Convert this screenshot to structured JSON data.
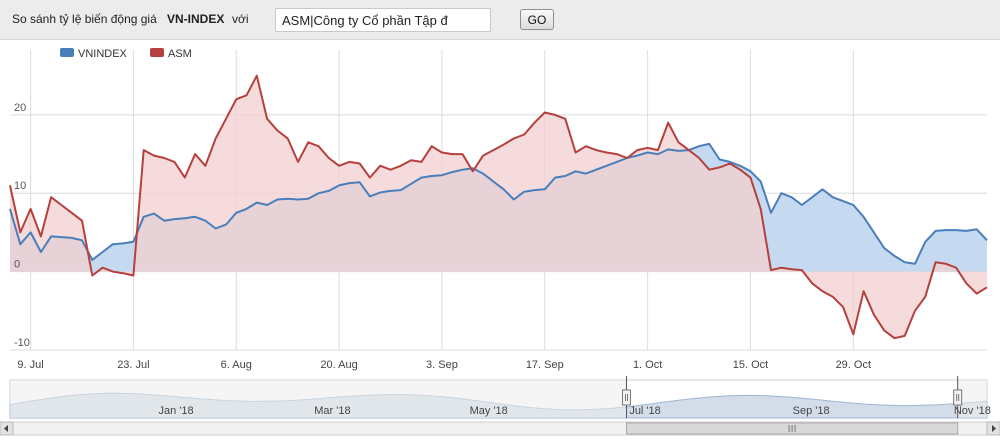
{
  "toolbar": {
    "compare_label": "So sánh tỷ lệ biến động giá",
    "index_name": "VN-INDEX",
    "with_label": "với",
    "symbol_value": "ASM|Công ty Cổ phần Tập đ",
    "go_label": "GO"
  },
  "colors": {
    "vnindex": "#4a7ebb",
    "vnindex_fill": "#c5daf0",
    "asm": "#b5403d",
    "asm_fill": "#f1cfcf",
    "overlap_fill": "#cbbdd4",
    "grid": "#dcdcdc",
    "navigator_fill": "#d3dde9",
    "navigator_mask": "#ececec"
  },
  "chart_data": {
    "type": "area",
    "series": [
      {
        "name": "VNINDEX",
        "values": [
          [
            0,
            8
          ],
          [
            2,
            3.5
          ],
          [
            4,
            5
          ],
          [
            6,
            2.5
          ],
          [
            8,
            4.5
          ],
          [
            10,
            4.4
          ],
          [
            12,
            4.3
          ],
          [
            14,
            4
          ],
          [
            16,
            1.5
          ],
          [
            18,
            2.5
          ],
          [
            20,
            3.5
          ],
          [
            22,
            3.6
          ],
          [
            24,
            3.8
          ],
          [
            26,
            7
          ],
          [
            28,
            7.4
          ],
          [
            30,
            6.5
          ],
          [
            32,
            6.7
          ],
          [
            34,
            6.8
          ],
          [
            36,
            7
          ],
          [
            38,
            6.5
          ],
          [
            40,
            5.5
          ],
          [
            42,
            6
          ],
          [
            44,
            7.5
          ],
          [
            46,
            8
          ],
          [
            48,
            8.8
          ],
          [
            50,
            8.5
          ],
          [
            52,
            9.2
          ],
          [
            54,
            9.3
          ],
          [
            56,
            9.2
          ],
          [
            58,
            9.3
          ],
          [
            60,
            10
          ],
          [
            62,
            10.3
          ],
          [
            64,
            11
          ],
          [
            66,
            11.3
          ],
          [
            68,
            11.4
          ],
          [
            70,
            9.6
          ],
          [
            72,
            10.1
          ],
          [
            74,
            10.3
          ],
          [
            76,
            10.4
          ],
          [
            78,
            11.2
          ],
          [
            80,
            12
          ],
          [
            82,
            12.2
          ],
          [
            84,
            12.3
          ],
          [
            86,
            12.7
          ],
          [
            88,
            13
          ],
          [
            90,
            13.2
          ],
          [
            92,
            12.5
          ],
          [
            94,
            11.5
          ],
          [
            96,
            10.5
          ],
          [
            98,
            9.2
          ],
          [
            100,
            10.2
          ],
          [
            102,
            10.4
          ],
          [
            104,
            10.5
          ],
          [
            106,
            12
          ],
          [
            108,
            12.2
          ],
          [
            110,
            12.8
          ],
          [
            112,
            12.5
          ],
          [
            114,
            13
          ],
          [
            116,
            13.5
          ],
          [
            118,
            14
          ],
          [
            120,
            14.5
          ],
          [
            122,
            14.8
          ],
          [
            124,
            15.2
          ],
          [
            126,
            15
          ],
          [
            128,
            15.6
          ],
          [
            130,
            15.4
          ],
          [
            132,
            15.5
          ],
          [
            134,
            16
          ],
          [
            136,
            16.3
          ],
          [
            138,
            14.3
          ],
          [
            140,
            14
          ],
          [
            142,
            13.5
          ],
          [
            144,
            12.8
          ],
          [
            146,
            11.5
          ],
          [
            148,
            7.5
          ],
          [
            150,
            10
          ],
          [
            152,
            9.5
          ],
          [
            154,
            8.5
          ],
          [
            156,
            9.5
          ],
          [
            158,
            10.5
          ],
          [
            160,
            9.5
          ],
          [
            162,
            9
          ],
          [
            164,
            8.5
          ],
          [
            166,
            7
          ],
          [
            168,
            5
          ],
          [
            170,
            3
          ],
          [
            172,
            2
          ],
          [
            174,
            1.2
          ],
          [
            176,
            1
          ],
          [
            178,
            3.8
          ],
          [
            180,
            5.2
          ],
          [
            182,
            5.3
          ],
          [
            184,
            5.3
          ],
          [
            186,
            5.2
          ],
          [
            188,
            5.4
          ],
          [
            190,
            4
          ]
        ]
      },
      {
        "name": "ASM",
        "values": [
          [
            0,
            11
          ],
          [
            2,
            5
          ],
          [
            4,
            8
          ],
          [
            6,
            4.5
          ],
          [
            8,
            9.5
          ],
          [
            10,
            8.5
          ],
          [
            12,
            7.5
          ],
          [
            14,
            6.5
          ],
          [
            16,
            -0.5
          ],
          [
            18,
            0.5
          ],
          [
            20,
            0
          ],
          [
            22,
            -0.2
          ],
          [
            24,
            -0.5
          ],
          [
            26,
            15.5
          ],
          [
            28,
            14.8
          ],
          [
            30,
            14.5
          ],
          [
            32,
            14
          ],
          [
            34,
            12
          ],
          [
            36,
            15
          ],
          [
            38,
            13.5
          ],
          [
            40,
            17
          ],
          [
            42,
            19.5
          ],
          [
            44,
            22
          ],
          [
            46,
            22.5
          ],
          [
            48,
            25
          ],
          [
            50,
            19.5
          ],
          [
            52,
            18
          ],
          [
            54,
            17
          ],
          [
            56,
            14
          ],
          [
            58,
            16.5
          ],
          [
            60,
            16
          ],
          [
            62,
            14.5
          ],
          [
            64,
            13.5
          ],
          [
            66,
            14
          ],
          [
            68,
            13.8
          ],
          [
            70,
            12
          ],
          [
            72,
            13.5
          ],
          [
            74,
            13
          ],
          [
            76,
            13.5
          ],
          [
            78,
            14.2
          ],
          [
            80,
            14
          ],
          [
            82,
            16
          ],
          [
            84,
            15.2
          ],
          [
            86,
            15
          ],
          [
            88,
            15
          ],
          [
            90,
            12.8
          ],
          [
            92,
            14.8
          ],
          [
            94,
            15.5
          ],
          [
            96,
            16.2
          ],
          [
            98,
            17
          ],
          [
            100,
            17.5
          ],
          [
            102,
            19
          ],
          [
            104,
            20.3
          ],
          [
            106,
            20
          ],
          [
            108,
            19.5
          ],
          [
            110,
            15.2
          ],
          [
            112,
            16
          ],
          [
            114,
            15.5
          ],
          [
            116,
            15.2
          ],
          [
            118,
            15
          ],
          [
            120,
            14.5
          ],
          [
            122,
            15.5
          ],
          [
            124,
            15.8
          ],
          [
            126,
            15.5
          ],
          [
            128,
            19
          ],
          [
            130,
            16.5
          ],
          [
            132,
            15.5
          ],
          [
            134,
            14.5
          ],
          [
            136,
            13
          ],
          [
            138,
            13.3
          ],
          [
            140,
            13.8
          ],
          [
            142,
            13
          ],
          [
            144,
            12
          ],
          [
            146,
            8
          ],
          [
            148,
            0.2
          ],
          [
            150,
            0.5
          ],
          [
            152,
            0.3
          ],
          [
            154,
            0.2
          ],
          [
            156,
            -1.5
          ],
          [
            158,
            -2.5
          ],
          [
            160,
            -3.2
          ],
          [
            162,
            -4.5
          ],
          [
            164,
            -8
          ],
          [
            166,
            -2.5
          ],
          [
            168,
            -5.5
          ],
          [
            170,
            -7.5
          ],
          [
            172,
            -8.5
          ],
          [
            174,
            -8.2
          ],
          [
            176,
            -5
          ],
          [
            178,
            -3.2
          ],
          [
            180,
            1.2
          ],
          [
            182,
            1
          ],
          [
            184,
            0.5
          ],
          [
            186,
            -1.5
          ],
          [
            188,
            -2.8
          ],
          [
            190,
            -2
          ]
        ]
      }
    ],
    "x_ticks": [
      {
        "x": 4,
        "label": "9. Jul"
      },
      {
        "x": 24,
        "label": "23. Jul"
      },
      {
        "x": 44,
        "label": "6. Aug"
      },
      {
        "x": 64,
        "label": "20. Aug"
      },
      {
        "x": 84,
        "label": "3. Sep"
      },
      {
        "x": 104,
        "label": "17. Sep"
      },
      {
        "x": 124,
        "label": "1. Oct"
      },
      {
        "x": 144,
        "label": "15. Oct"
      },
      {
        "x": 164,
        "label": "29. Oct"
      }
    ],
    "xlim": [
      0,
      190
    ],
    "y_ticks": [
      -10,
      0,
      10,
      20
    ],
    "ylim": [
      -10,
      27
    ],
    "grid": true,
    "legend": "top-left",
    "navigator": {
      "labels": [
        "Jan '18",
        "Mar '18",
        "May '18",
        "Jul '18",
        "Sep '18",
        "Nov '18"
      ],
      "selected_range": [
        0.631,
        0.97
      ]
    }
  }
}
